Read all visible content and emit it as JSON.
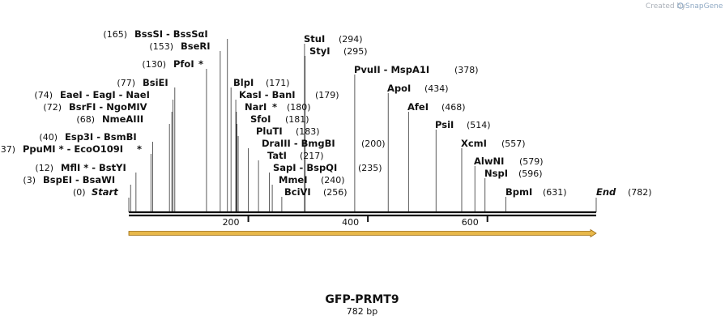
{
  "watermark": {
    "prefix": "Created by",
    "brand": "SnapGene"
  },
  "construct": {
    "name": "GFP-PRMT9",
    "length_label": "782 bp",
    "length_bp": 782
  },
  "ruler": {
    "ticks": [
      {
        "bp": 200,
        "label": "200"
      },
      {
        "bp": 400,
        "label": "400"
      },
      {
        "bp": 600,
        "label": "600"
      }
    ]
  },
  "feature": {
    "name": "orf-arrow",
    "start_bp": 0,
    "end_bp": 782,
    "color": "#e8b84a"
  },
  "start_marker": {
    "pos": "(0)",
    "label": "Start",
    "bp": 0
  },
  "end_marker": {
    "pos": "(782)",
    "label": "End",
    "bp": 782
  },
  "sites_left": [
    {
      "pos": "(165)",
      "names": "BssSI  -  BssSαI",
      "star": "",
      "bp": 165
    },
    {
      "pos": "(153)",
      "names": "BseRI",
      "star": "",
      "bp": 153
    },
    {
      "pos": "(130)",
      "names": "PfoI",
      "star": "*",
      "bp": 130
    },
    {
      "pos": "(77)",
      "names": "BsiEI",
      "star": "",
      "bp": 77
    },
    {
      "pos": "(74)",
      "names": "EaeI  -  EagI  -  NaeI",
      "star": "",
      "bp": 74
    },
    {
      "pos": "(72)",
      "names": "BsrFI  -  NgoMIV",
      "star": "",
      "bp": 72
    },
    {
      "pos": "(68)",
      "names": "NmeAIII",
      "star": "",
      "bp": 68
    },
    {
      "pos": "(40)",
      "names": "Esp3I  -  BsmBI",
      "star": "",
      "bp": 40
    },
    {
      "pos": "(37)",
      "names": "PpuMI *  -  EcoO109I",
      "star": "*",
      "bp": 37
    },
    {
      "pos": "(12)",
      "names": "MflI *  -  BstYI",
      "star": "",
      "bp": 12
    },
    {
      "pos": "(3)",
      "names": "BspEI  -  BsaWI",
      "star": "",
      "bp": 3
    }
  ],
  "sites_mid": [
    {
      "pos": "(171)",
      "names": "BlpI",
      "star": "",
      "bp": 171
    },
    {
      "pos": "(179)",
      "names": "KasI  -  BanI",
      "star": "",
      "bp": 179
    },
    {
      "pos": "(180)",
      "names": "NarI",
      "star": "*",
      "bp": 180
    },
    {
      "pos": "(181)",
      "names": "SfoI",
      "star": "",
      "bp": 181
    },
    {
      "pos": "(183)",
      "names": "PluTI",
      "star": "",
      "bp": 183
    },
    {
      "pos": "(200)",
      "names": "DraIII  -  BmgBI",
      "star": "",
      "bp": 200
    },
    {
      "pos": "(217)",
      "names": "TatI",
      "star": "",
      "bp": 217
    },
    {
      "pos": "(235)",
      "names": "SapI  -  BspQI",
      "star": "",
      "bp": 235
    },
    {
      "pos": "(240)",
      "names": "MmeI",
      "star": "",
      "bp": 240
    },
    {
      "pos": "(256)",
      "names": "BciVI",
      "star": "",
      "bp": 256
    }
  ],
  "sites_top": [
    {
      "pos": "(294)",
      "names": "StuI",
      "star": "",
      "bp": 294
    },
    {
      "pos": "(295)",
      "names": "StyI",
      "star": "",
      "bp": 295
    }
  ],
  "sites_right": [
    {
      "pos": "(378)",
      "names": "PvuII  -  MspA1I",
      "star": "",
      "bp": 378
    },
    {
      "pos": "(434)",
      "names": "ApoI",
      "star": "",
      "bp": 434
    },
    {
      "pos": "(468)",
      "names": "AfeI",
      "star": "",
      "bp": 468
    },
    {
      "pos": "(514)",
      "names": "PsiI",
      "star": "",
      "bp": 514
    },
    {
      "pos": "(557)",
      "names": "XcmI",
      "star": "",
      "bp": 557
    },
    {
      "pos": "(579)",
      "names": "AlwNI",
      "star": "",
      "bp": 579
    },
    {
      "pos": "(596)",
      "names": "NspI",
      "star": "",
      "bp": 596
    },
    {
      "pos": "(631)",
      "names": "BpmI",
      "star": "",
      "bp": 631
    }
  ]
}
